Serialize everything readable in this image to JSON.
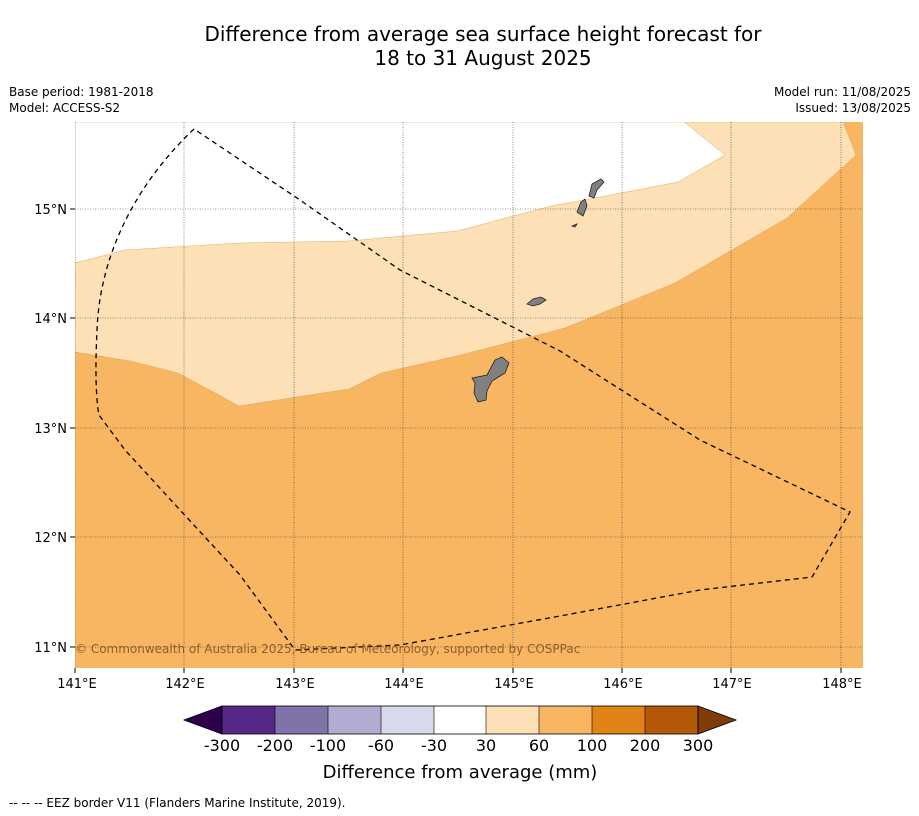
{
  "title_line1": "Difference from average sea surface height forecast for",
  "title_line2": "18 to 31 August 2025",
  "base_period": "Base period: 1981-2018",
  "model": "Model: ACCESS-S2",
  "model_run": "Model run: 11/08/2025",
  "issued": "Issued: 13/08/2025",
  "copyright": "© Commonwealth of Australia 2025, Bureau of Meteorology, supported by COSPPac",
  "x_ticks": [
    "141°E",
    "142°E",
    "143°E",
    "144°E",
    "145°E",
    "146°E",
    "147°E",
    "148°E"
  ],
  "y_ticks": [
    "15°N",
    "14°N",
    "13°N",
    "12°N",
    "11°N"
  ],
  "colorbar": {
    "label": "Difference from average (mm)",
    "ticks": [
      "-300",
      "-200",
      "-100",
      "-60",
      "-30",
      "30",
      "60",
      "100",
      "200",
      "300"
    ],
    "colors": [
      "#2d004b",
      "#542788",
      "#8073ac",
      "#b2abd2",
      "#d8daeb",
      "#ffffff",
      "#fde0b6",
      "#f9b662",
      "#e08214",
      "#b35806",
      "#7f3b08"
    ]
  },
  "map_colors": {
    "band_30_60": "#fde0b6",
    "band_60_100": "#f9b662",
    "land": "#808080"
  },
  "legend_note": "--  --  -- EEZ border V11 (Flanders Marine Institute, 2019)."
}
